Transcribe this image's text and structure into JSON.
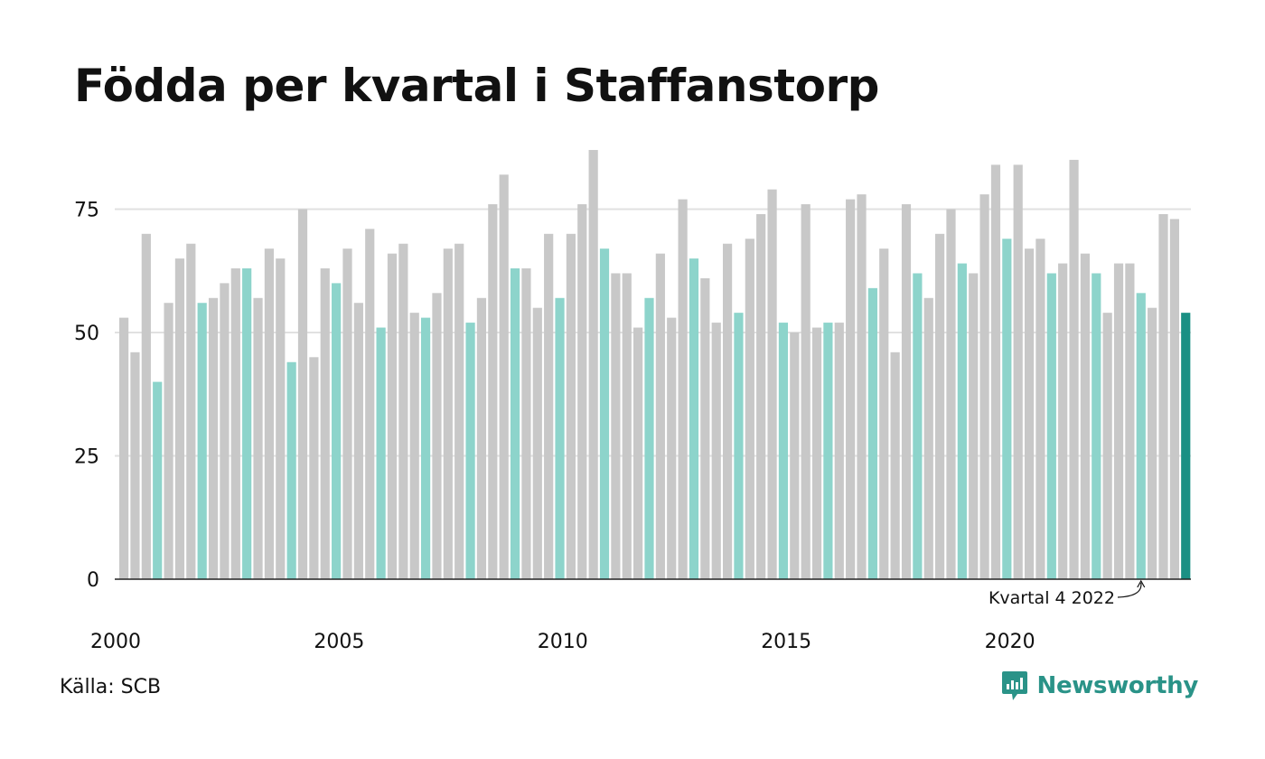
{
  "title": "Födda per kvartal i Staffanstorp",
  "source": "Källa: SCB",
  "brand": {
    "name": "Newsworthy",
    "icon": "newsworthy-logo-icon"
  },
  "colors": {
    "other_quarters": "#c8c8c8",
    "q4_quarters": "#8dd4cb",
    "highlight": "#1a9084",
    "grid": "#e1e1e1",
    "axis": "#222222",
    "brand": "#2a9388"
  },
  "chart_data": {
    "type": "bar",
    "title": "Födda per kvartal i Staffanstorp",
    "xlabel": "",
    "ylabel": "",
    "ylim": [
      0,
      90
    ],
    "yticks": [
      0,
      25,
      50,
      75
    ],
    "xticks": [
      "2000",
      "2005",
      "2010",
      "2015",
      "2020"
    ],
    "grid": true,
    "start_year": 2000,
    "quarters_per_year": 4,
    "values": [
      53,
      46,
      70,
      40,
      56,
      65,
      68,
      56,
      57,
      60,
      63,
      63,
      57,
      67,
      65,
      44,
      75,
      45,
      63,
      60,
      67,
      56,
      71,
      51,
      66,
      68,
      54,
      53,
      58,
      67,
      68,
      52,
      57,
      76,
      82,
      63,
      63,
      55,
      70,
      57,
      70,
      76,
      87,
      67,
      62,
      62,
      51,
      57,
      66,
      53,
      77,
      65,
      61,
      52,
      68,
      54,
      69,
      74,
      79,
      52,
      50,
      76,
      51,
      52,
      52,
      77,
      78,
      59,
      67,
      46,
      76,
      62,
      57,
      70,
      75,
      64,
      62,
      78,
      84,
      69,
      84,
      67,
      69,
      62,
      64,
      85,
      66,
      62,
      54,
      64,
      64,
      58,
      55,
      74,
      73,
      54
    ],
    "annotation": {
      "label": "Kvartal 4 2022",
      "year": 2022,
      "quarter": 4
    },
    "highlight": {
      "year": 2023,
      "quarter": 4
    }
  }
}
